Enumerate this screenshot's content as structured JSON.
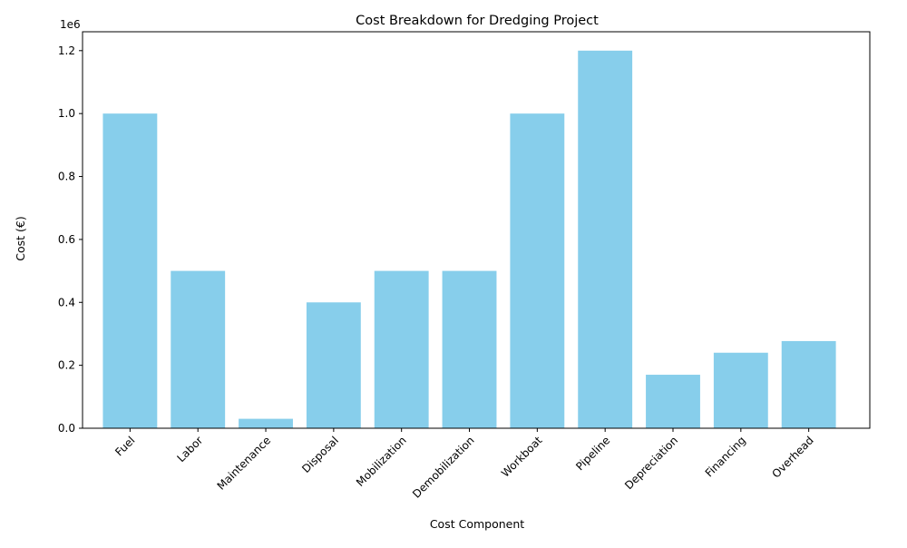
{
  "chart_data": {
    "type": "bar",
    "title": "Cost Breakdown for Dredging Project",
    "xlabel": "Cost Component",
    "ylabel": "Cost (€)",
    "y_offset_label": "1e6",
    "categories": [
      "Fuel",
      "Labor",
      "Maintenance",
      "Disposal",
      "Mobilization",
      "Demobilization",
      "Workboat",
      "Pipeline",
      "Depreciation",
      "Financing",
      "Overhead"
    ],
    "values": [
      1000000,
      500000,
      30000,
      400000,
      500000,
      500000,
      1000000,
      1200000,
      170000,
      240000,
      277000
    ],
    "ylim": [
      0,
      1260000
    ],
    "yticks": [
      0,
      200000,
      400000,
      600000,
      800000,
      1000000,
      1200000
    ],
    "ytick_labels": [
      "0.0",
      "0.2",
      "0.4",
      "0.6",
      "0.8",
      "1.0",
      "1.2"
    ],
    "bar_color": "#87ceeb",
    "grid": false
  }
}
